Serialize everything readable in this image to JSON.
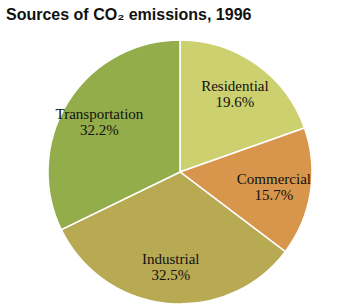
{
  "chart_data": {
    "type": "pie",
    "title": "Sources of CO₂ emissions, 1996",
    "categories": [
      "Residential",
      "Commercial",
      "Industrial",
      "Transportation"
    ],
    "values": [
      19.6,
      15.7,
      32.5,
      32.2
    ],
    "value_labels": [
      "19.6%",
      "15.7%",
      "32.5%",
      "32.2%"
    ],
    "colors": [
      "#cdd06f",
      "#d8964c",
      "#b8a953",
      "#93ad4a"
    ],
    "data_labels": true
  }
}
